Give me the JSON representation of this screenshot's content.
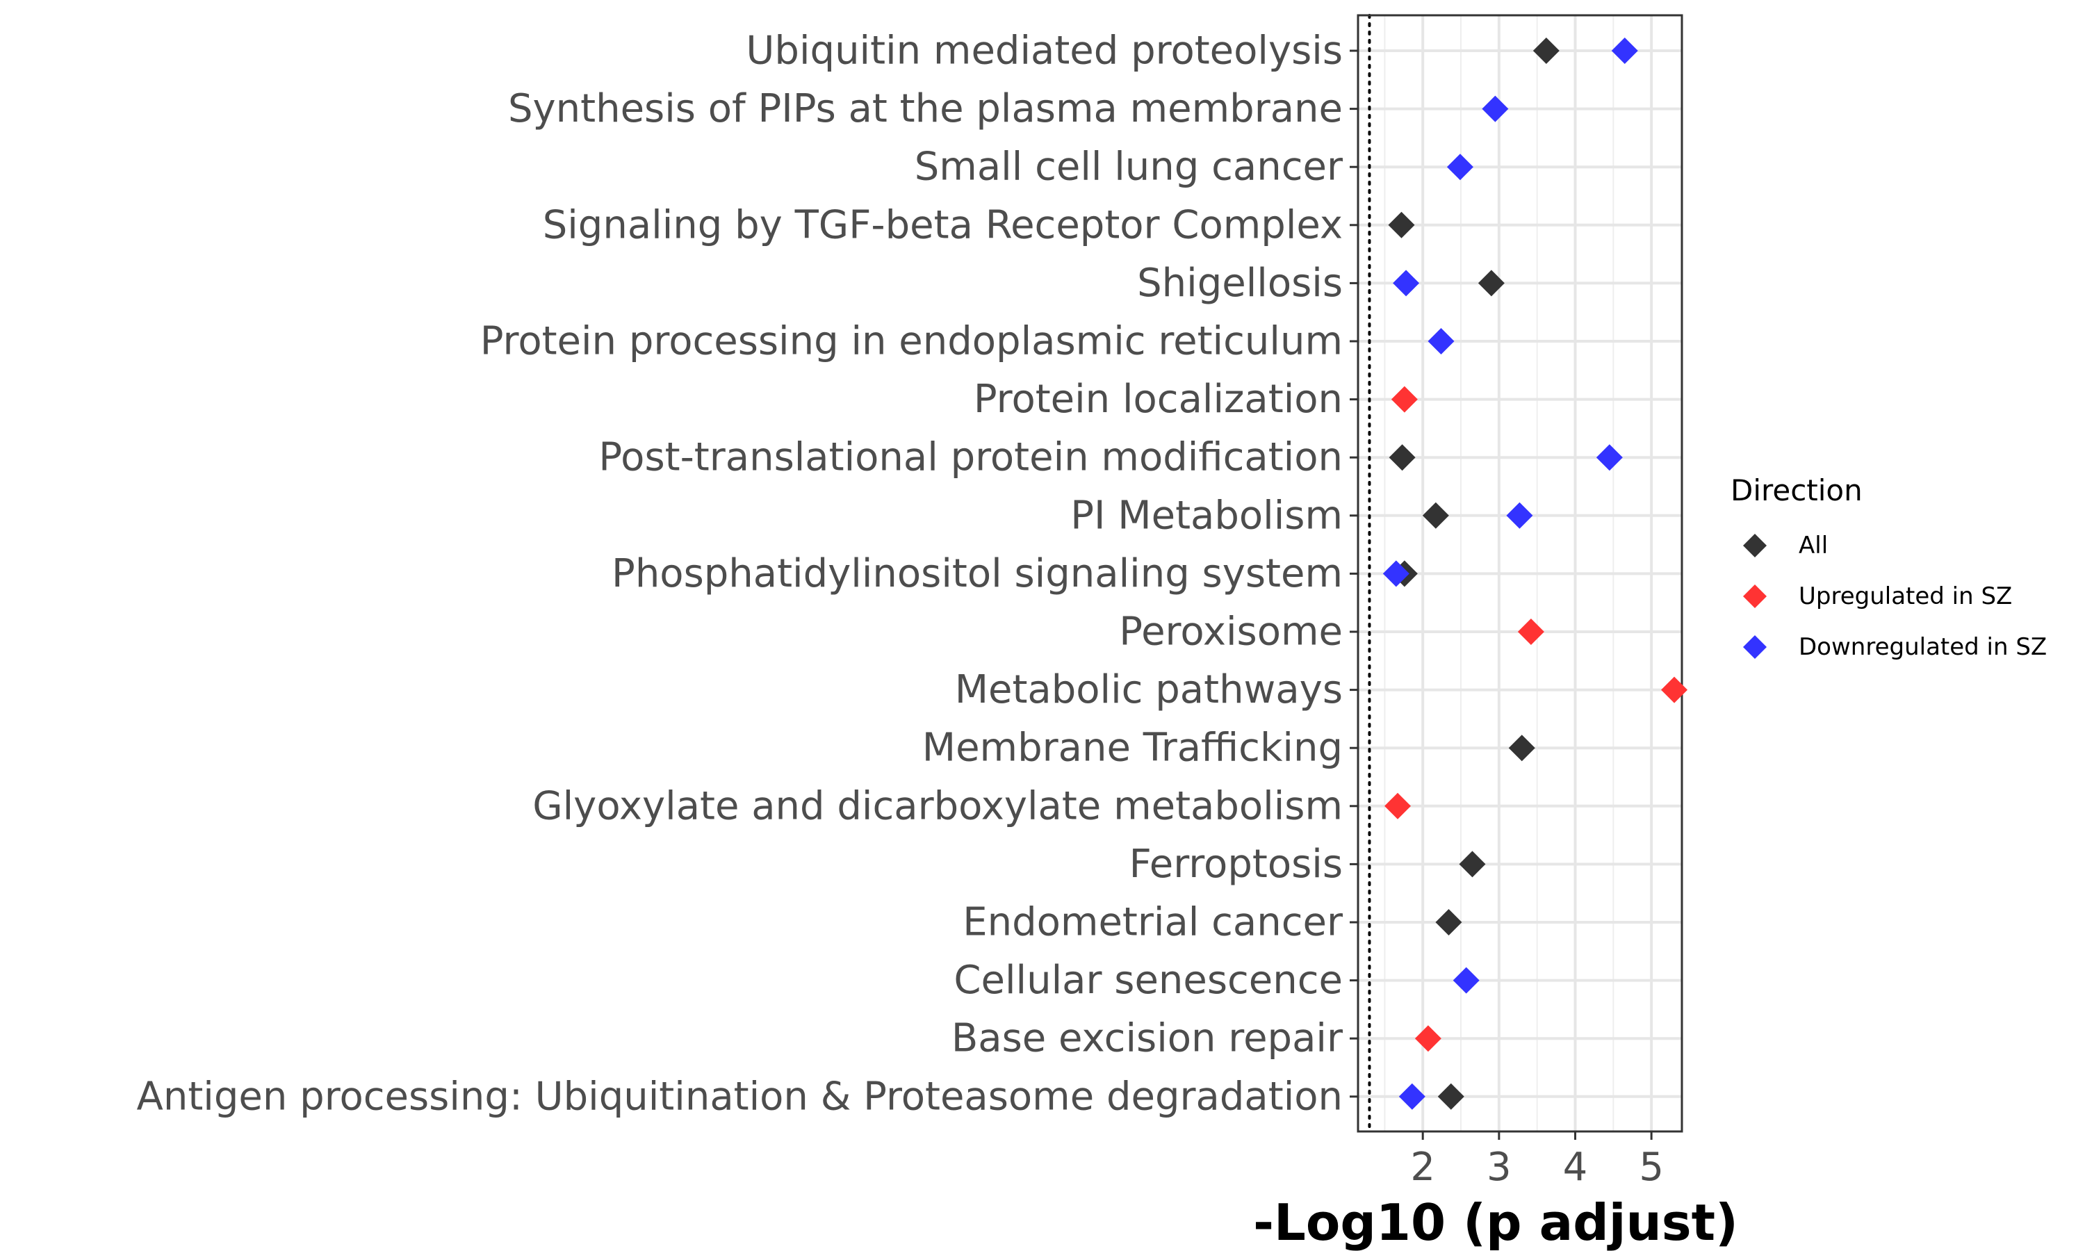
{
  "chart_data": {
    "type": "scatter",
    "title": "",
    "xlabel": "-Log10 (p adjust)",
    "ylabel": "",
    "xlim": [
      1.15,
      5.4
    ],
    "xticks": [
      2,
      3,
      4,
      5
    ],
    "threshold_line": 1.3,
    "grid": true,
    "legend_position": "right",
    "marker": "diamond",
    "categories": [
      "Ubiquitin mediated proteolysis",
      "Synthesis of PIPs at the plasma membrane",
      "Small cell lung cancer",
      "Signaling by TGF-beta Receptor Complex",
      "Shigellosis",
      "Protein processing in endoplasmic reticulum",
      "Protein localization",
      "Post-translational protein modification",
      "PI Metabolism",
      "Phosphatidylinositol signaling system",
      "Peroxisome",
      "Metabolic pathways",
      "Membrane Trafficking",
      "Glyoxylate and dicarboxylate metabolism",
      "Ferroptosis",
      "Endometrial cancer",
      "Cellular senescence",
      "Base excision repair",
      "Antigen processing: Ubiquitination & Proteasome degradation"
    ],
    "legend_title": "Direction",
    "series": [
      {
        "name": "All",
        "color": "#333333",
        "points": [
          {
            "category": "Ubiquitin mediated proteolysis",
            "x": 3.62
          },
          {
            "category": "Signaling by TGF-beta Receptor Complex",
            "x": 1.72
          },
          {
            "category": "Shigellosis",
            "x": 2.9
          },
          {
            "category": "Post-translational protein modification",
            "x": 1.73
          },
          {
            "category": "PI Metabolism",
            "x": 2.17
          },
          {
            "category": "Phosphatidylinositol signaling system",
            "x": 1.76
          },
          {
            "category": "Membrane Trafficking",
            "x": 3.3
          },
          {
            "category": "Ferroptosis",
            "x": 2.65
          },
          {
            "category": "Endometrial cancer",
            "x": 2.34
          },
          {
            "category": "Antigen processing: Ubiquitination & Proteasome degradation",
            "x": 2.37
          }
        ]
      },
      {
        "name": "Upregulated in SZ",
        "color": "#ff3333",
        "points": [
          {
            "category": "Protein localization",
            "x": 1.76
          },
          {
            "category": "Peroxisome",
            "x": 3.42
          },
          {
            "category": "Metabolic pathways",
            "x": 5.3
          },
          {
            "category": "Glyoxylate and dicarboxylate metabolism",
            "x": 1.67
          },
          {
            "category": "Base excision repair",
            "x": 2.07
          }
        ]
      },
      {
        "name": "Downregulated in SZ",
        "color": "#3333ff",
        "points": [
          {
            "category": "Ubiquitin mediated proteolysis",
            "x": 4.65
          },
          {
            "category": "Synthesis of PIPs at the plasma membrane",
            "x": 2.95
          },
          {
            "category": "Small cell lung cancer",
            "x": 2.49
          },
          {
            "category": "Shigellosis",
            "x": 1.78
          },
          {
            "category": "Protein processing in endoplasmic reticulum",
            "x": 2.24
          },
          {
            "category": "Post-translational protein modification",
            "x": 4.45
          },
          {
            "category": "PI Metabolism",
            "x": 3.27
          },
          {
            "category": "Phosphatidylinositol signaling system",
            "x": 1.65
          },
          {
            "category": "Cellular senescence",
            "x": 2.57
          },
          {
            "category": "Antigen processing: Ubiquitination & Proteasome degradation",
            "x": 1.86
          }
        ]
      }
    ]
  }
}
